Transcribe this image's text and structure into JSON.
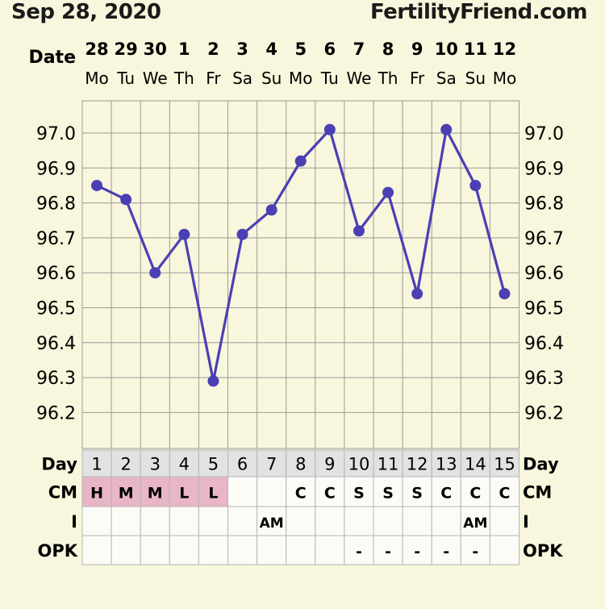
{
  "header": {
    "date": "Sep 28, 2020",
    "site": "FertilityFriend.com"
  },
  "row_labels": {
    "date": "Date",
    "day": "Day",
    "cm": "CM",
    "i": "I",
    "opk": "OPK"
  },
  "colors": {
    "background": "#f8f6dc",
    "line": "#4b3fb4",
    "grid": "#9a9a9a",
    "day_cell": "#e2e2e2",
    "cm_highlight": "#e8b6c8",
    "cell": "#fcfcf6"
  },
  "chart_data": {
    "type": "line",
    "dates": [
      "28",
      "29",
      "30",
      "1",
      "2",
      "3",
      "4",
      "5",
      "6",
      "7",
      "8",
      "9",
      "10",
      "11",
      "12"
    ],
    "weekdays": [
      "Mo",
      "Tu",
      "We",
      "Th",
      "Fr",
      "Sa",
      "Su",
      "Mo",
      "Tu",
      "We",
      "Th",
      "Fr",
      "Sa",
      "Su",
      "Mo"
    ],
    "cycle_days": [
      "1",
      "2",
      "3",
      "4",
      "5",
      "6",
      "7",
      "8",
      "9",
      "10",
      "11",
      "12",
      "13",
      "14",
      "15"
    ],
    "series": [
      {
        "values": [
          96.85,
          96.81,
          96.6,
          96.71,
          96.29,
          96.71,
          96.78,
          96.92,
          97.01,
          96.72,
          96.83,
          96.54,
          97.01,
          96.85,
          96.54
        ]
      }
    ],
    "y_ticks": [
      "97.0",
      "96.9",
      "96.8",
      "96.7",
      "96.6",
      "96.5",
      "96.4",
      "96.3",
      "96.2"
    ],
    "ylim": [
      96.12,
      97.1
    ],
    "grid": true,
    "cm": [
      "H",
      "M",
      "M",
      "L",
      "L",
      "",
      "",
      "C",
      "C",
      "S",
      "S",
      "S",
      "C",
      "C",
      "C"
    ],
    "cm_highlight": [
      true,
      true,
      true,
      true,
      true,
      false,
      false,
      false,
      false,
      false,
      false,
      false,
      false,
      false,
      false
    ],
    "intercourse": [
      "",
      "",
      "",
      "",
      "",
      "",
      "AM",
      "",
      "",
      "",
      "",
      "",
      "",
      "AM",
      ""
    ],
    "opk": [
      "",
      "",
      "",
      "",
      "",
      "",
      "",
      "",
      "",
      "-",
      "-",
      "-",
      "-",
      "-",
      ""
    ]
  }
}
